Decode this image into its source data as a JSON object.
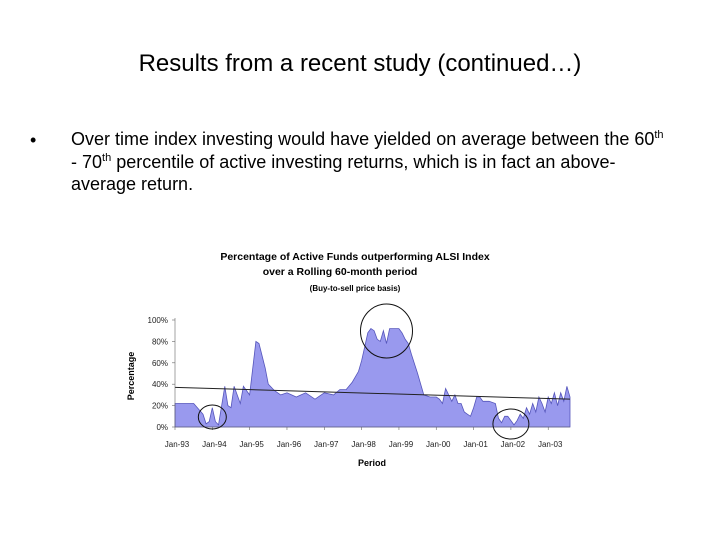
{
  "slide": {
    "title": "Results from a recent study (continued…)",
    "bullet": {
      "marker": "•",
      "part1": "Over time index investing would have yielded on average between the 60",
      "sup1": "th",
      "part2": " - 70",
      "sup2": "th",
      "part3": " percentile of active investing returns, which is in fact an above-average return."
    }
  },
  "chart_data": {
    "type": "area",
    "title": "Percentage of Active Funds outperforming ALSI Index",
    "title_line2": "over a Rolling 60-month period",
    "subtitle": "(Buy-to-sell price basis)",
    "xlabel": "Period",
    "ylabel": "Percentage",
    "x_ticks": [
      "Jan-93",
      "Jan-94",
      "Jan-95",
      "Jan-96",
      "Jan-97",
      "Jan-98",
      "Jan-99",
      "Jan-00",
      "Jan-01",
      "Jan-02",
      "Jan-03"
    ],
    "y_ticks": [
      "100%",
      "80%",
      "60%",
      "40%",
      "20%",
      "0%"
    ],
    "ylim": [
      0,
      100
    ],
    "fill_color": "#9999ee",
    "series": [
      {
        "x": [
          "1993-01",
          "1993-07",
          "1993-10",
          "1993-11",
          "1993-12",
          "1994-01",
          "1994-02",
          "1994-03",
          "1994-05",
          "1994-06",
          "1994-07",
          "1994-08",
          "1994-10",
          "1994-11",
          "1995-01",
          "1995-03",
          "1995-04",
          "1995-06",
          "1995-07",
          "1995-09",
          "1995-11",
          "1996-01",
          "1996-04",
          "1996-07",
          "1996-10",
          "1997-01",
          "1997-04",
          "1997-06",
          "1997-08",
          "1997-10",
          "1997-12",
          "1998-01",
          "1998-02",
          "1998-03",
          "1998-04",
          "1998-05",
          "1998-06",
          "1998-07",
          "1998-08",
          "1998-09",
          "1998-10",
          "1998-11",
          "1998-12",
          "1999-01",
          "1999-02",
          "1999-03",
          "1999-04",
          "1999-05",
          "1999-07",
          "1999-09",
          "1999-11",
          "2000-01",
          "2000-02",
          "2000-03",
          "2000-04",
          "2000-06",
          "2000-07",
          "2000-08",
          "2000-09",
          "2000-10",
          "2000-11",
          "2000-12",
          "2001-01",
          "2001-02",
          "2001-03",
          "2001-04",
          "2001-06",
          "2001-08",
          "2001-09",
          "2001-10",
          "2001-11",
          "2001-12",
          "2002-01",
          "2002-02",
          "2002-03",
          "2002-04",
          "2002-05",
          "2002-06",
          "2002-07",
          "2002-08",
          "2002-09",
          "2002-10",
          "2002-11",
          "2002-12",
          "2003-01",
          "2003-02",
          "2003-03",
          "2003-04",
          "2003-05",
          "2003-06",
          "2003-07",
          "2003-08"
        ],
        "values": [
          22,
          22,
          12,
          3,
          5,
          18,
          5,
          2,
          38,
          20,
          18,
          38,
          22,
          38,
          30,
          80,
          78,
          55,
          40,
          34,
          30,
          32,
          28,
          32,
          26,
          32,
          30,
          35,
          35,
          42,
          52,
          62,
          75,
          88,
          92,
          90,
          82,
          80,
          90,
          78,
          92,
          92,
          92,
          92,
          88,
          82,
          78,
          68,
          50,
          30,
          28,
          28,
          26,
          22,
          36,
          24,
          30,
          22,
          22,
          14,
          12,
          10,
          18,
          28,
          28,
          24,
          24,
          22,
          8,
          4,
          10,
          10,
          6,
          2,
          6,
          12,
          8,
          18,
          12,
          22,
          14,
          28,
          22,
          14,
          28,
          22,
          32,
          20,
          32,
          24,
          38,
          28
        ]
      },
      {
        "name": "trend",
        "x": [
          "1993-01",
          "2003-08"
        ],
        "values": [
          37,
          26
        ]
      }
    ],
    "annotations": [
      "circle around Jan-94 trough",
      "circle around 1998-99 peak",
      "circle around Jan-02 trough"
    ]
  }
}
